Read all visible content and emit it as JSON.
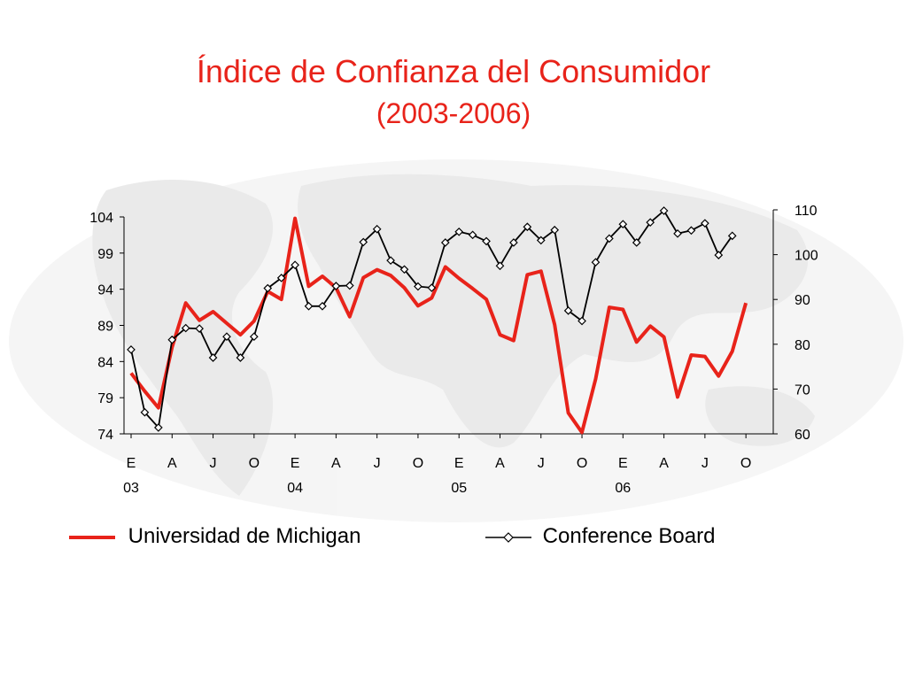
{
  "title": "Índice de Confianza del Consumidor",
  "subtitle": "(2003-2006)",
  "colors": {
    "title": "#e8231a",
    "michigan": "#e8231a",
    "conference": "#000000"
  },
  "chart_data": {
    "type": "line",
    "title": "Índice de Confianza del Consumidor",
    "subtitle": "(2003-2006)",
    "x_ticks": [
      "E",
      "A",
      "J",
      "O",
      "E",
      "A",
      "J",
      "O",
      "E",
      "A",
      "J",
      "O",
      "E",
      "A",
      "J",
      "O"
    ],
    "year_labels": [
      "03",
      "04",
      "05",
      "06"
    ],
    "left_axis": {
      "ticks": [
        "104",
        "99",
        "94",
        "89",
        "84",
        "79",
        "74"
      ],
      "ylim": [
        74,
        104
      ]
    },
    "right_axis": {
      "ticks": [
        "110",
        "100",
        "90",
        "80",
        "70",
        "60"
      ],
      "ylim": [
        60,
        110
      ]
    },
    "grid": false,
    "legend_position": "bottom",
    "series": [
      {
        "name": "Universidad de Michigan",
        "axis": "left",
        "color": "#e8231a",
        "marker": "none",
        "start_month": "2003-01",
        "values": [
          82.4,
          79.9,
          77.6,
          86.0,
          92.1,
          89.7,
          90.9,
          89.3,
          87.7,
          89.6,
          93.7,
          92.6,
          103.8,
          94.4,
          95.8,
          94.2,
          90.2,
          95.6,
          96.7,
          95.9,
          94.2,
          91.7,
          92.8,
          97.1,
          95.5,
          94.1,
          92.6,
          87.7,
          86.9,
          96.0,
          96.5,
          89.1,
          76.9,
          74.2,
          81.6,
          91.5,
          91.2,
          86.7,
          88.9,
          87.4,
          79.1,
          84.9,
          84.7,
          82.0,
          85.4,
          92.1
        ]
      },
      {
        "name": "Conference Board",
        "axis": "right",
        "color": "#000000",
        "marker": "diamond",
        "start_month": "2003-01",
        "values": [
          78.8,
          64.8,
          61.4,
          81.0,
          83.6,
          83.5,
          77.0,
          81.7,
          77.0,
          81.7,
          92.5,
          94.8,
          97.7,
          88.5,
          88.5,
          93.0,
          93.1,
          102.8,
          105.7,
          98.7,
          96.7,
          92.9,
          92.6,
          102.7,
          105.1,
          104.4,
          103.0,
          97.5,
          102.7,
          106.2,
          103.2,
          105.5,
          87.5,
          85.2,
          98.3,
          103.6,
          106.8,
          102.7,
          107.2,
          109.8,
          104.7,
          105.4,
          107.0,
          99.9,
          104.2
        ]
      }
    ]
  },
  "legend": {
    "michigan_label": "Universidad de Michigan",
    "conference_label": "Conference Board"
  }
}
